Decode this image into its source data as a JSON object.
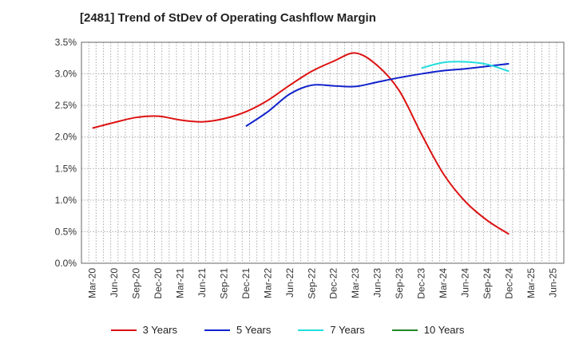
{
  "chart_data": {
    "type": "line",
    "title": "[2481]  Trend of StDev of Operating Cashflow Margin",
    "xlabel": "",
    "ylabel": "",
    "categories": [
      "Mar-20",
      "Jun-20",
      "Sep-20",
      "Dec-20",
      "Mar-21",
      "Jun-21",
      "Sep-21",
      "Dec-21",
      "Mar-22",
      "Jun-22",
      "Sep-22",
      "Dec-22",
      "Mar-23",
      "Jun-23",
      "Sep-23",
      "Dec-23",
      "Mar-24",
      "Jun-24",
      "Sep-24",
      "Dec-24",
      "Mar-25",
      "Jun-25"
    ],
    "y_ticks": [
      "0.0%",
      "0.5%",
      "1.0%",
      "1.5%",
      "2.0%",
      "2.5%",
      "3.0%",
      "3.5%"
    ],
    "ylim": [
      0,
      3.5
    ],
    "grid": true,
    "legend_position": "bottom",
    "series": [
      {
        "name": "3 Years",
        "color": "#dd1111",
        "values": [
          2.14,
          2.23,
          2.31,
          2.33,
          2.27,
          2.24,
          2.29,
          2.4,
          2.58,
          2.82,
          3.04,
          3.2,
          3.33,
          3.13,
          2.73,
          2.05,
          1.42,
          0.98,
          0.68,
          0.46,
          null,
          null
        ]
      },
      {
        "name": "5 Years",
        "color": "#1122cc",
        "values": [
          null,
          null,
          null,
          null,
          null,
          null,
          null,
          2.17,
          2.4,
          2.68,
          2.82,
          2.81,
          2.8,
          2.87,
          2.94,
          3.0,
          3.05,
          3.08,
          3.12,
          3.16,
          null,
          null
        ]
      },
      {
        "name": "7 Years",
        "color": "#22dddd",
        "values": [
          null,
          null,
          null,
          null,
          null,
          null,
          null,
          null,
          null,
          null,
          null,
          null,
          null,
          null,
          null,
          3.09,
          3.18,
          3.19,
          3.15,
          3.04,
          null,
          null
        ]
      },
      {
        "name": "10 Years",
        "color": "#228822",
        "values": [
          null,
          null,
          null,
          null,
          null,
          null,
          null,
          null,
          null,
          null,
          null,
          null,
          null,
          null,
          null,
          null,
          null,
          null,
          null,
          null,
          null,
          null
        ]
      }
    ]
  }
}
